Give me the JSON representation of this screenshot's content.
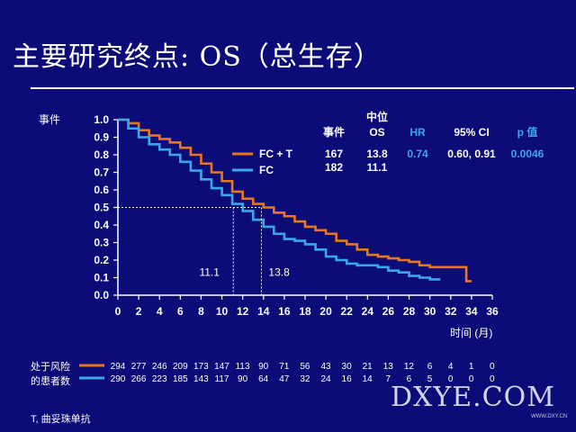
{
  "slide": {
    "title": "主要研究终点: OS（总生存）",
    "footnote": "T, 曲妥珠单抗",
    "watermark": "DXYE.COM",
    "watermark_url": "WWW.DXY.CN"
  },
  "chart_data": {
    "type": "line",
    "ylabel": "事件",
    "xlabel": "时间 (月)",
    "xlim": [
      0,
      36
    ],
    "ylim": [
      0,
      1.0
    ],
    "x_ticks": [
      0,
      2,
      4,
      6,
      8,
      10,
      12,
      14,
      16,
      18,
      20,
      22,
      24,
      26,
      28,
      30,
      32,
      34,
      36
    ],
    "y_ticks": [
      "0.0",
      "0.1",
      "0.2",
      "0.3",
      "0.4",
      "0.5",
      "0.6",
      "0.7",
      "0.8",
      "0.9",
      "1.0"
    ],
    "grid": false,
    "legend_position": "top-center",
    "series": [
      {
        "name": "FC + T",
        "color": "#e8761a",
        "points": [
          [
            0,
            1.0
          ],
          [
            1,
            0.98
          ],
          [
            2,
            0.94
          ],
          [
            3,
            0.91
          ],
          [
            4,
            0.89
          ],
          [
            5,
            0.87
          ],
          [
            6,
            0.84
          ],
          [
            7,
            0.8
          ],
          [
            8,
            0.75
          ],
          [
            9,
            0.7
          ],
          [
            10,
            0.65
          ],
          [
            11,
            0.59
          ],
          [
            12,
            0.55
          ],
          [
            13,
            0.52
          ],
          [
            14,
            0.5
          ],
          [
            15,
            0.47
          ],
          [
            16,
            0.45
          ],
          [
            17,
            0.42
          ],
          [
            18,
            0.39
          ],
          [
            19,
            0.37
          ],
          [
            20,
            0.35
          ],
          [
            21,
            0.31
          ],
          [
            22,
            0.29
          ],
          [
            23,
            0.26
          ],
          [
            24,
            0.23
          ],
          [
            25,
            0.22
          ],
          [
            26,
            0.21
          ],
          [
            27,
            0.2
          ],
          [
            28,
            0.19
          ],
          [
            29,
            0.17
          ],
          [
            30,
            0.16
          ],
          [
            31,
            0.16
          ],
          [
            32,
            0.16
          ],
          [
            33,
            0.16
          ],
          [
            33.5,
            0.08
          ],
          [
            34,
            0.08
          ]
        ]
      },
      {
        "name": "FC",
        "color": "#3aa8e6",
        "points": [
          [
            0,
            1.0
          ],
          [
            1,
            0.95
          ],
          [
            2,
            0.9
          ],
          [
            3,
            0.86
          ],
          [
            4,
            0.83
          ],
          [
            5,
            0.8
          ],
          [
            6,
            0.76
          ],
          [
            7,
            0.71
          ],
          [
            8,
            0.66
          ],
          [
            9,
            0.61
          ],
          [
            10,
            0.57
          ],
          [
            11,
            0.52
          ],
          [
            12,
            0.48
          ],
          [
            13,
            0.43
          ],
          [
            14,
            0.39
          ],
          [
            15,
            0.35
          ],
          [
            16,
            0.32
          ],
          [
            17,
            0.31
          ],
          [
            18,
            0.29
          ],
          [
            19,
            0.26
          ],
          [
            20,
            0.22
          ],
          [
            21,
            0.2
          ],
          [
            22,
            0.18
          ],
          [
            23,
            0.17
          ],
          [
            24,
            0.17
          ],
          [
            25,
            0.16
          ],
          [
            26,
            0.14
          ],
          [
            27,
            0.13
          ],
          [
            28,
            0.11
          ],
          [
            29,
            0.1
          ],
          [
            30,
            0.09
          ],
          [
            31,
            0.09
          ]
        ]
      }
    ],
    "annotations": [
      {
        "label": "11.1",
        "x": 11.1,
        "y": 0.5,
        "label_x": 8.8,
        "label_y": 0.13
      },
      {
        "label": "13.8",
        "x": 13.8,
        "y": 0.5,
        "label_x": 15.5,
        "label_y": 0.13
      }
    ],
    "stats_table": {
      "headers": [
        "事件",
        "中位\nOS",
        "HR",
        "95% CI",
        "p 值"
      ],
      "header_top": "中位",
      "header_os": "OS",
      "header_colors": [
        "#ffffff",
        "#ffffff",
        "#3aa8e6",
        "#ffffff",
        "#3aa8e6"
      ],
      "rows": [
        {
          "events": "167",
          "median_os": "13.8"
        },
        {
          "events": "182",
          "median_os": "11.1"
        }
      ],
      "hr": "0.74",
      "ci": "0.60, 0.91",
      "p": "0.0046"
    },
    "at_risk": {
      "label_line1": "处于风险",
      "label_line2": "的患者数",
      "rows": [
        {
          "series": "FC + T",
          "values": [
            "294",
            "277",
            "246",
            "209",
            "173",
            "147",
            "113",
            "90",
            "71",
            "56",
            "43",
            "30",
            "21",
            "13",
            "12",
            "6",
            "4",
            "1",
            "0"
          ]
        },
        {
          "series": "FC",
          "values": [
            "290",
            "266",
            "223",
            "185",
            "143",
            "117",
            "90",
            "64",
            "47",
            "32",
            "24",
            "16",
            "14",
            "7",
            "6",
            "5",
            "0",
            "0",
            "0"
          ]
        }
      ]
    }
  }
}
